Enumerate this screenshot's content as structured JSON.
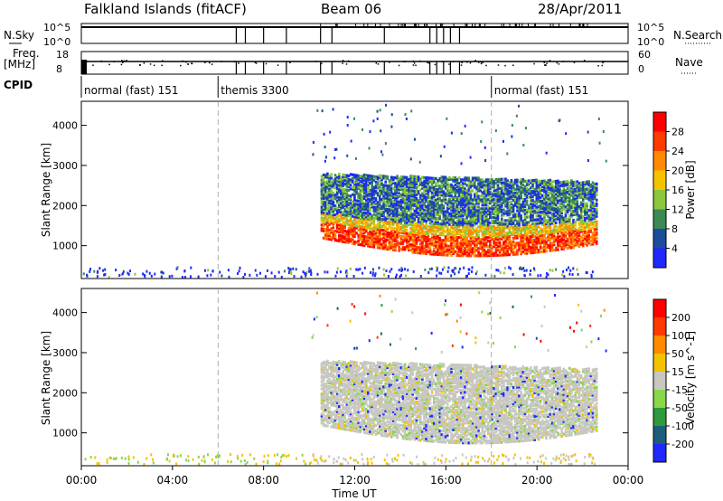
{
  "chart_data": {
    "type": "heatmap",
    "header": {
      "site": "Falkland Islands (fitACF)",
      "beam": "Beam 06",
      "date": "28/Apr/2011"
    },
    "top_panels": {
      "nsky_label": "N.Sky",
      "nsky_ticks": [
        "10^5",
        "10^0"
      ],
      "nsearch_label": "N.Search",
      "nsearch_ticks": [
        "10^5",
        "10^0"
      ],
      "freq_label": "Freq.",
      "freq_unit": "[MHz]",
      "freq_ticks": [
        "18",
        "8"
      ],
      "nave_label": "Nave",
      "nave_ticks": [
        "60",
        "0"
      ],
      "cpid_label": "CPID",
      "cpid_segments": [
        {
          "label": "normal (fast) 151",
          "start": 0,
          "end": 6
        },
        {
          "label": "themis 3300",
          "start": 6,
          "end": 18
        },
        {
          "label": "normal (fast) 151",
          "start": 18,
          "end": 24
        }
      ],
      "nsky_drop_times": [
        6.8,
        7.2,
        8.0,
        9.0,
        10.5,
        11.0,
        13.3,
        15.3,
        15.6,
        15.9,
        16.2,
        16.6
      ]
    },
    "x_axis": {
      "label": "Time UT",
      "range_hours": [
        0,
        24
      ],
      "ticks": [
        "00:00",
        "04:00",
        "08:00",
        "12:00",
        "16:00",
        "20:00",
        "00:00"
      ]
    },
    "power_panel": {
      "ylabel": "Slant Range [km]",
      "y_range_km": [
        180,
        4600
      ],
      "y_ticks": [
        1000,
        2000,
        3000,
        4000
      ],
      "colorbar_label": "Power [dB]",
      "colorbar_ticks": [
        "4",
        "8",
        "12",
        "16",
        "20",
        "24",
        "28"
      ],
      "colors": [
        "#1e28ff",
        "#1c4c9c",
        "#3b8a55",
        "#8cc63e",
        "#f5c200",
        "#ff8a00",
        "#ff3a00",
        "#ff0000"
      ]
    },
    "velocity_panel": {
      "ylabel": "Slant Range [km]",
      "y_range_km": [
        180,
        4600
      ],
      "y_ticks": [
        1000,
        2000,
        3000,
        4000
      ],
      "colorbar_label": "Velocity [m s^-1]",
      "colorbar_ticks": [
        "200",
        "100",
        "50",
        "15",
        "-15",
        "-50",
        "-100",
        "-200"
      ],
      "colors": [
        "#1e28ff",
        "#1c5e7a",
        "#2e9a3e",
        "#88d84a",
        "#c8c8c0",
        "#f5c200",
        "#ff8a00",
        "#ff3a00",
        "#ff0000"
      ]
    },
    "echo_region": {
      "start": 10.5,
      "end": 22.6
    }
  }
}
